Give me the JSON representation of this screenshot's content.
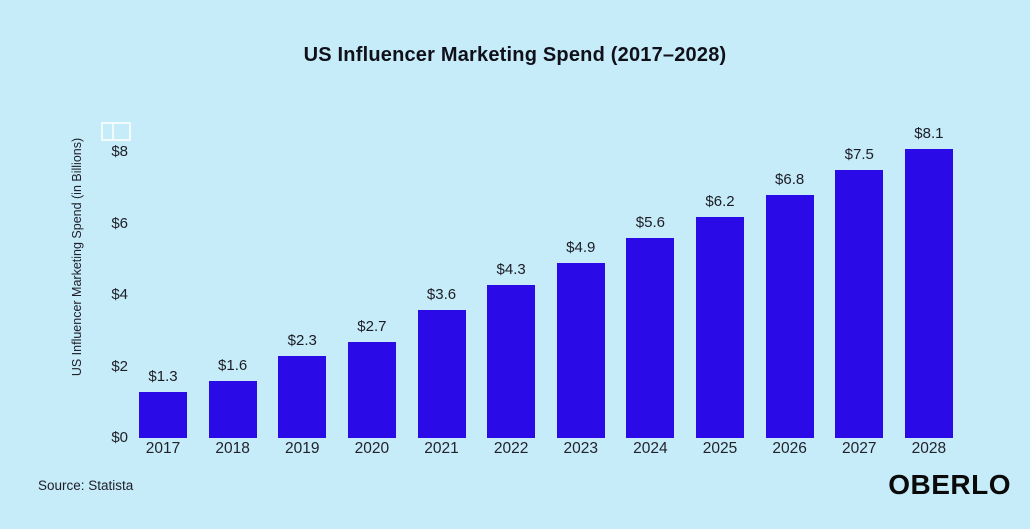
{
  "title": "US Influencer Marketing Spend (2017–2028)",
  "source_note": "Source: Statista",
  "brand_logo": "OBERLO",
  "colors": {
    "background": "#c5ecf8",
    "bar": "#2b0ae8",
    "title_text": "#10101a",
    "label_text": "#20202a",
    "logo_text": "#0a0a0a"
  },
  "chart_data": {
    "type": "bar",
    "title": "US Influencer Marketing Spend (2017–2028)",
    "xlabel": "",
    "ylabel": "US Influencer Marketing Spend (in Billions)",
    "categories": [
      "2017",
      "2018",
      "2019",
      "2020",
      "2021",
      "2022",
      "2023",
      "2024",
      "2025",
      "2026",
      "2027",
      "2028"
    ],
    "values": [
      1.3,
      1.6,
      2.3,
      2.7,
      3.6,
      4.3,
      4.9,
      5.6,
      6.2,
      6.8,
      7.5,
      8.1
    ],
    "value_labels": [
      "$1.3",
      "$1.6",
      "$2.3",
      "$2.7",
      "$3.6",
      "$4.3",
      "$4.9",
      "$5.6",
      "$6.2",
      "$6.8",
      "$7.5",
      "$8.1"
    ],
    "ytick_values": [
      0,
      2,
      4,
      6,
      8
    ],
    "ytick_labels": [
      "$0",
      "$2",
      "$4",
      "$6",
      "$8"
    ],
    "ylim": [
      0,
      8.8
    ],
    "grid": false,
    "legend": false,
    "legend_position": "none",
    "bar_color": "#2b0ae8",
    "units": "billions USD"
  }
}
